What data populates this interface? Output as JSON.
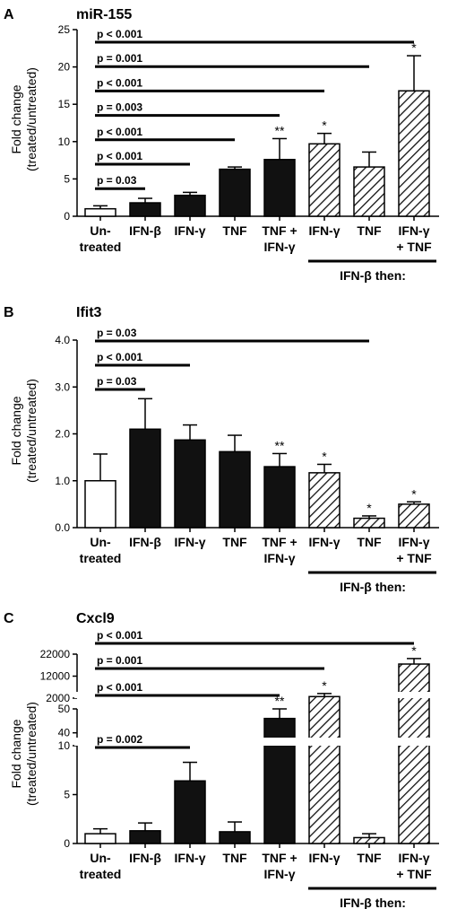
{
  "colors": {
    "untreated": "#ffffff",
    "single": "#111111",
    "hatched": "#111111",
    "line": "#000000"
  },
  "group_label": "IFN-β then:",
  "y_label_line1": "Fold change",
  "y_label_line2": "(treated/untreated)",
  "categories": [
    [
      "Un-",
      "treated"
    ],
    [
      "IFN-β",
      ""
    ],
    [
      "IFN-γ",
      ""
    ],
    [
      "TNF",
      ""
    ],
    [
      "TNF +",
      "IFN-γ"
    ],
    [
      "IFN-γ",
      ""
    ],
    [
      "TNF",
      ""
    ],
    [
      "IFN-γ",
      "+ TNF"
    ]
  ],
  "fills": [
    "open",
    "solid",
    "solid",
    "solid",
    "solid",
    "hatched",
    "hatched",
    "hatched"
  ],
  "chart_data": [
    {
      "panel": "A",
      "title": "miR-155",
      "type": "bar",
      "ylim": [
        0,
        25
      ],
      "yticks": [
        "0",
        "5",
        "10",
        "15",
        "20",
        "25"
      ],
      "values": [
        1.0,
        1.8,
        2.8,
        6.3,
        7.6,
        9.7,
        6.6,
        16.8
      ],
      "errors": [
        0.4,
        0.6,
        0.4,
        0.3,
        2.8,
        1.4,
        2.0,
        4.7
      ],
      "stars": [
        "",
        "",
        "",
        "",
        "**",
        "*",
        "",
        "*"
      ],
      "comparisons": [
        {
          "label": "p < 0.001",
          "to": 7
        },
        {
          "label": "p = 0.001",
          "to": 6
        },
        {
          "label": "p < 0.001",
          "to": 5
        },
        {
          "label": "p = 0.003",
          "to": 4
        },
        {
          "label": "p < 0.001",
          "to": 3
        },
        {
          "label": "p < 0.001",
          "to": 2
        },
        {
          "label": "p = 0.03",
          "to": 1
        }
      ]
    },
    {
      "panel": "B",
      "title": "Ifit3",
      "type": "bar",
      "ylim": [
        0,
        4
      ],
      "yticks": [
        "0.0",
        "1.0",
        "2.0",
        "3.0",
        "4.0"
      ],
      "values": [
        1.0,
        2.1,
        1.87,
        1.62,
        1.3,
        1.17,
        0.2,
        0.5
      ],
      "errors": [
        0.57,
        0.65,
        0.32,
        0.35,
        0.28,
        0.18,
        0.05,
        0.05
      ],
      "stars": [
        "",
        "",
        "",
        "",
        "**",
        "*",
        "*",
        "*"
      ],
      "comparisons": [
        {
          "label": "p = 0.03",
          "to": 6
        },
        {
          "label": "p < 0.001",
          "to": 2
        },
        {
          "label": "p = 0.03",
          "to": 1
        }
      ]
    },
    {
      "panel": "C",
      "title": "Cxcl9",
      "type": "bar",
      "y_axis": "broken",
      "ysegments": [
        {
          "range": [
            0,
            10
          ],
          "ticks": [
            "0",
            "5",
            "10"
          ]
        },
        {
          "range": [
            35,
            50
          ],
          "ticks": [
            "40",
            "50"
          ]
        },
        {
          "range": [
            2000,
            22000
          ],
          "ticks": [
            "2000",
            "12000",
            "22000"
          ]
        }
      ],
      "values": [
        1.0,
        1.3,
        6.4,
        1.2,
        46,
        2700,
        0.6,
        17500
      ],
      "errors": [
        0.5,
        0.8,
        1.9,
        1.0,
        4,
        1400,
        0.4,
        2500
      ],
      "stars": [
        "",
        "",
        "",
        "",
        "**",
        "*",
        "",
        "*"
      ],
      "comparisons": [
        {
          "label": "p < 0.001",
          "to": 7
        },
        {
          "label": "p = 0.001",
          "to": 5
        },
        {
          "label": "p < 0.001",
          "to": 4
        },
        {
          "label": "p = 0.002",
          "to": 2
        }
      ]
    }
  ]
}
